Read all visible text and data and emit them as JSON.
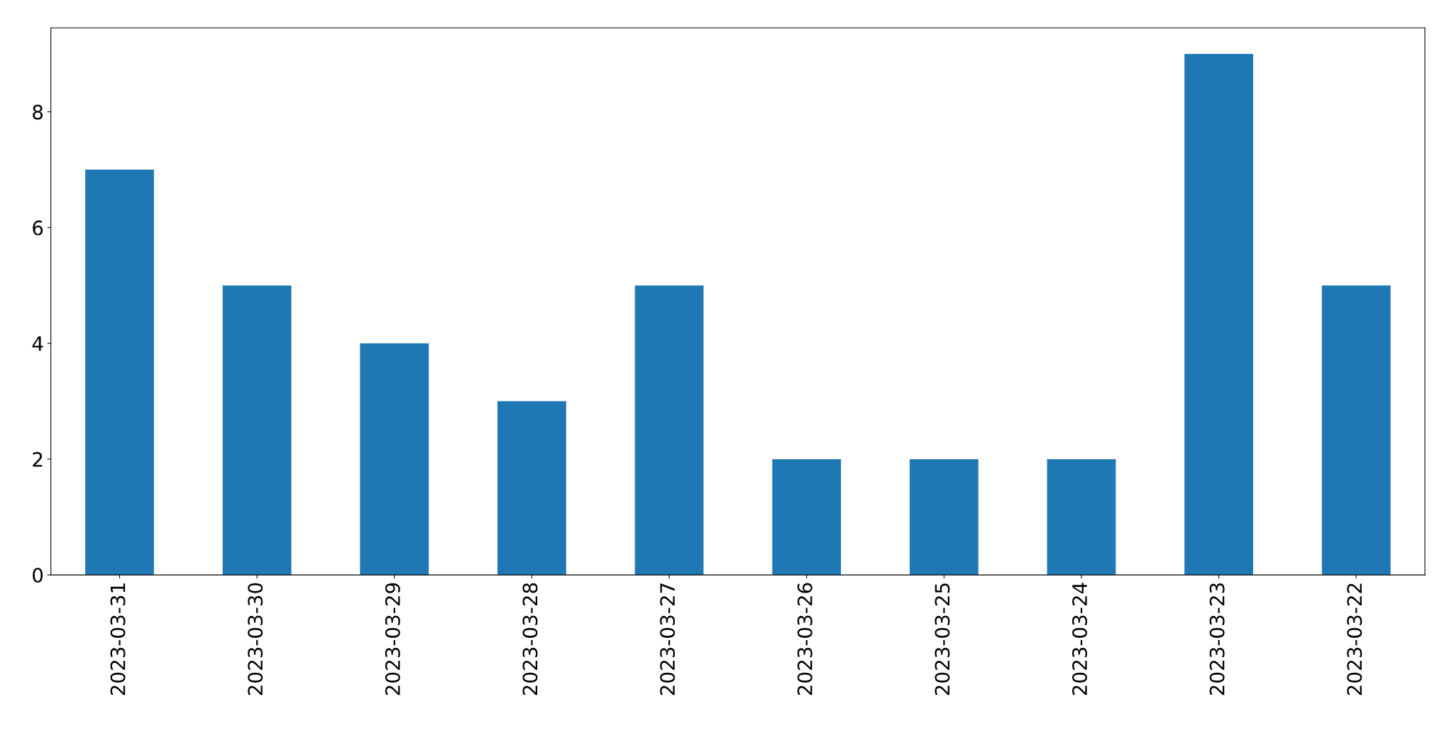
{
  "chart_data": {
    "type": "bar",
    "categories": [
      "2023-03-31",
      "2023-03-30",
      "2023-03-29",
      "2023-03-28",
      "2023-03-27",
      "2023-03-26",
      "2023-03-25",
      "2023-03-24",
      "2023-03-23",
      "2023-03-22"
    ],
    "values": [
      7,
      5,
      4,
      3,
      5,
      2,
      2,
      2,
      9,
      5
    ],
    "color": "#1f77b4",
    "ylim": [
      0,
      9.45
    ],
    "yticks": [
      0,
      2,
      4,
      6,
      8
    ],
    "grid": false
  }
}
